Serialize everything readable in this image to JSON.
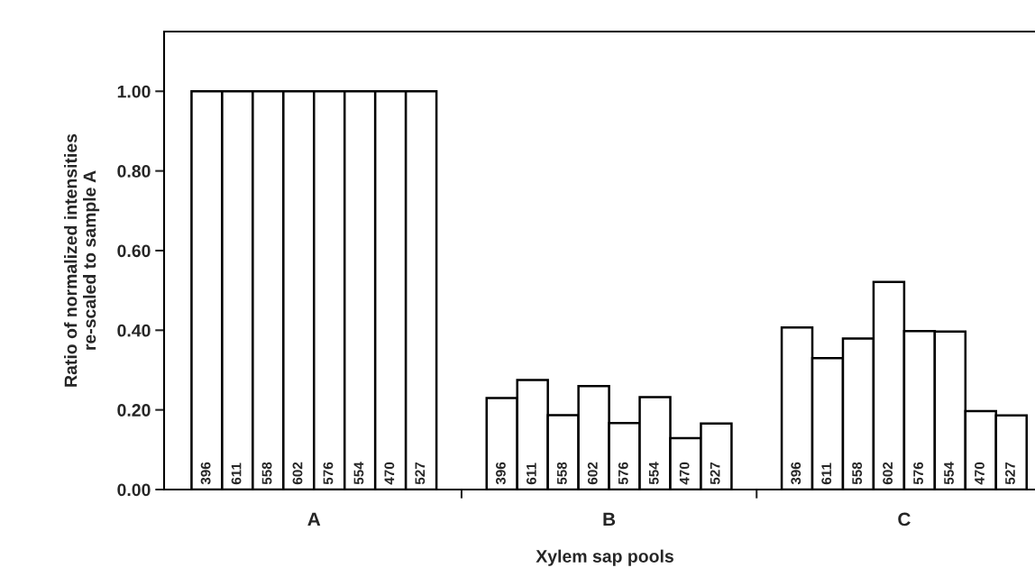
{
  "chart_data": {
    "type": "bar",
    "xlabel": "Xylem sap pools",
    "ylabel": "Ratio of normalized intensities\nre-scaled to sample A",
    "categories": [
      "A",
      "B",
      "C"
    ],
    "series": [
      {
        "name": "396",
        "color": "#ffffff",
        "values": [
          1.0,
          0.23,
          0.407
        ]
      },
      {
        "name": "611",
        "color": "#ffffff",
        "values": [
          1.0,
          0.275,
          0.33
        ]
      },
      {
        "name": "558",
        "color": "#ffffff",
        "values": [
          1.0,
          0.187,
          0.379
        ]
      },
      {
        "name": "602",
        "color": "#ffffff",
        "values": [
          1.0,
          0.26,
          0.521
        ]
      },
      {
        "name": "576",
        "color": "#ffffff",
        "values": [
          1.0,
          0.167,
          0.398
        ]
      },
      {
        "name": "554",
        "color": "#ffffff",
        "values": [
          1.0,
          0.232,
          0.397
        ]
      },
      {
        "name": "470",
        "color": "#ffffff",
        "values": [
          1.0,
          0.129,
          0.197
        ]
      },
      {
        "name": "527",
        "color": "#ffffff",
        "values": [
          1.0,
          0.166,
          0.186
        ]
      }
    ],
    "ylim": [
      0,
      1.15
    ],
    "yticks": [
      {
        "value": 0,
        "label": "0.00"
      },
      {
        "value": 0.2,
        "label": "0.20"
      },
      {
        "value": 0.4,
        "label": "0.40"
      },
      {
        "value": 0.6,
        "label": "0.60"
      },
      {
        "value": 0.8,
        "label": "0.80"
      },
      {
        "value": 1.0,
        "label": "1.00"
      }
    ],
    "grid": false,
    "legend": false
  }
}
